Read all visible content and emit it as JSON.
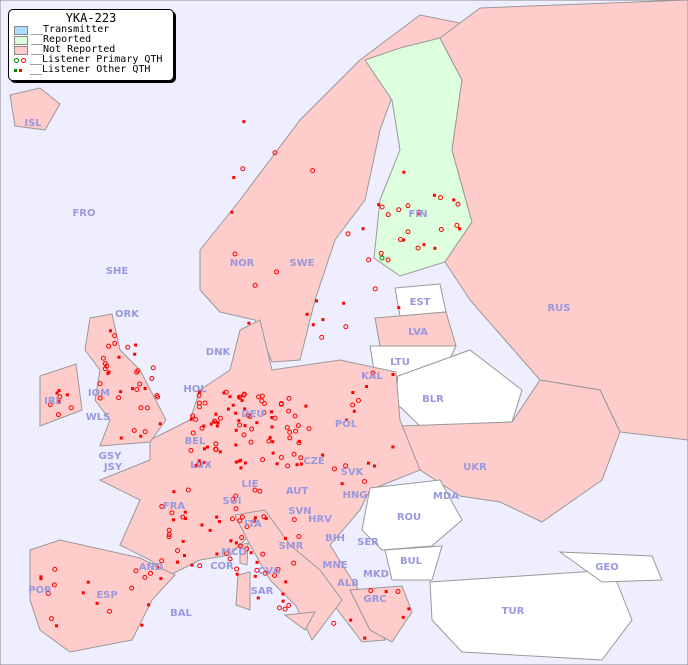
{
  "map": {
    "title": "YKA-223",
    "colors": {
      "background": "#eeeeff",
      "transmitter": "#aaddff",
      "reported": "#ddffdd",
      "not_reported": "#ffcccc",
      "listener": "#ff0000",
      "listener_reported": "#008800"
    },
    "legend": [
      {
        "label": "__Transmitter",
        "icon": "transmitter-swatch"
      },
      {
        "label": "__Reported",
        "icon": "reported-swatch"
      },
      {
        "label": "__Not Reported",
        "icon": "not-reported-swatch"
      },
      {
        "label": "__Listener Primary QTH",
        "icon": "circle-marker"
      },
      {
        "label": "__Listener Other QTH",
        "icon": "square-marker"
      }
    ],
    "countries": [
      "ISL",
      "FRO",
      "SHE",
      "ORK",
      "NOR",
      "SWE",
      "FIN",
      "EST",
      "RUS",
      "LVA",
      "LTU",
      "DNK",
      "KAL",
      "BLR",
      "HOL",
      "DEU",
      "POL",
      "IRL",
      "IOM",
      "WLS",
      "GSY",
      "JSY",
      "BEL",
      "LUX",
      "CZE",
      "SVK",
      "UKR",
      "FRA",
      "SUI",
      "LIE",
      "AUT",
      "HNG",
      "MDA",
      "SVN",
      "HRV",
      "ROU",
      "ITA",
      "BIH",
      "SER",
      "MCO",
      "SMR",
      "COR",
      "AND",
      "MNE",
      "BUL",
      "GEO",
      "POR",
      "ESP",
      "CVA",
      "SAR",
      "ALB",
      "MKD",
      "BAL",
      "GRC",
      "TUR"
    ]
  }
}
